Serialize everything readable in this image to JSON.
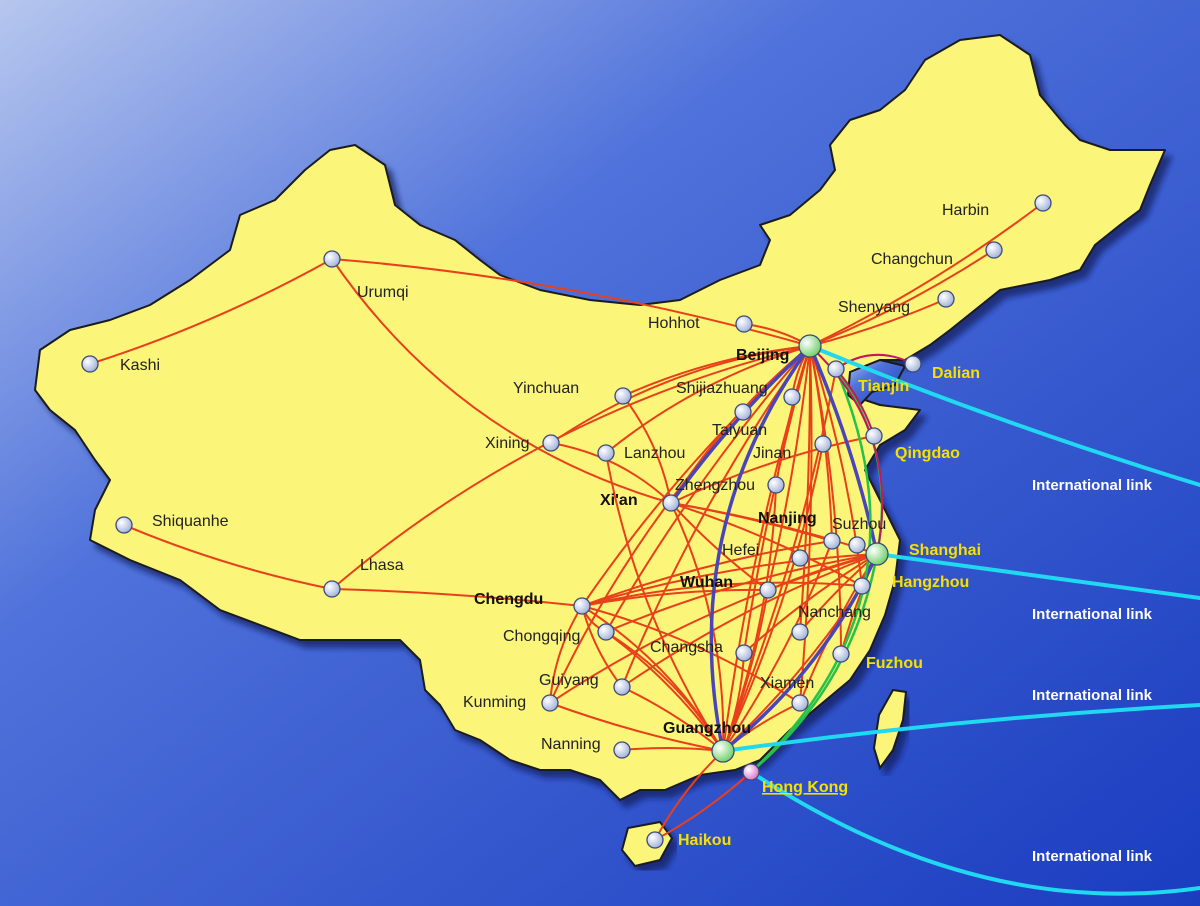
{
  "colors": {
    "land": "#fbf57a",
    "land_outline": "#1a1a1a",
    "sea_light": "#9fb3e6",
    "sea_dark": "#1d3ec2",
    "domestic_route": "#e8401a",
    "trunk_route": "#4a46b8",
    "coastal_route": "#25c14a",
    "bohai_route": "#c2185b",
    "international_route": "#20d8f0",
    "city_node": "#c8d4f0",
    "hub_node": "#9be08a",
    "hk_node": "#f08ad8",
    "coastal_label": "#f6e000"
  },
  "cities": [
    {
      "id": "harbin",
      "name": "Harbin",
      "kind": "normal"
    },
    {
      "id": "changchun",
      "name": "Changchun",
      "kind": "normal"
    },
    {
      "id": "shenyang",
      "name": "Shenyang",
      "kind": "normal"
    },
    {
      "id": "dalian",
      "name": "Dalian",
      "kind": "coastal"
    },
    {
      "id": "hohhot",
      "name": "Hohhot",
      "kind": "normal"
    },
    {
      "id": "beijing",
      "name": "Beijing",
      "kind": "hub"
    },
    {
      "id": "tianjin",
      "name": "Tianjin",
      "kind": "coastal"
    },
    {
      "id": "yinchuan",
      "name": "Yinchuan",
      "kind": "normal"
    },
    {
      "id": "shijiazhuang",
      "name": "Shijiazhuang",
      "kind": "normal"
    },
    {
      "id": "taiyuan",
      "name": "Taiyuan",
      "kind": "normal"
    },
    {
      "id": "qingdao",
      "name": "Qingdao",
      "kind": "coastal"
    },
    {
      "id": "xining",
      "name": "Xining",
      "kind": "normal"
    },
    {
      "id": "lanzhou",
      "name": "Lanzhou",
      "kind": "normal"
    },
    {
      "id": "jinan",
      "name": "Jinan",
      "kind": "normal"
    },
    {
      "id": "xian",
      "name": "Xi'an",
      "kind": "major"
    },
    {
      "id": "zhengzhou",
      "name": "Zhengzhou",
      "kind": "normal"
    },
    {
      "id": "nanjing",
      "name": "Nanjing",
      "kind": "major"
    },
    {
      "id": "suzhou",
      "name": "Suzhou",
      "kind": "normal"
    },
    {
      "id": "shanghai",
      "name": "Shanghai",
      "kind": "hub_coastal"
    },
    {
      "id": "hefei",
      "name": "Hefei",
      "kind": "normal"
    },
    {
      "id": "hangzhou",
      "name": "Hangzhou",
      "kind": "coastal"
    },
    {
      "id": "wuhan",
      "name": "Wuhan",
      "kind": "major"
    },
    {
      "id": "chengdu",
      "name": "Chengdu",
      "kind": "major"
    },
    {
      "id": "chongqing",
      "name": "Chongqing",
      "kind": "normal"
    },
    {
      "id": "nanchang",
      "name": "Nanchang",
      "kind": "normal"
    },
    {
      "id": "changsha",
      "name": "Changsha",
      "kind": "normal"
    },
    {
      "id": "fuzhou",
      "name": "Fuzhou",
      "kind": "coastal"
    },
    {
      "id": "guiyang",
      "name": "Guiyang",
      "kind": "normal"
    },
    {
      "id": "xiamen",
      "name": "Xiamen",
      "kind": "normal"
    },
    {
      "id": "kunming",
      "name": "Kunming",
      "kind": "normal"
    },
    {
      "id": "guangzhou",
      "name": "Guangzhou",
      "kind": "hub"
    },
    {
      "id": "nanning",
      "name": "Nanning",
      "kind": "normal"
    },
    {
      "id": "hongkong",
      "name": "Hong Kong",
      "kind": "hk"
    },
    {
      "id": "haikou",
      "name": "Haikou",
      "kind": "coastal"
    },
    {
      "id": "kashi",
      "name": "Kashi",
      "kind": "normal"
    },
    {
      "id": "urumqi",
      "name": "Urumqi",
      "kind": "normal"
    },
    {
      "id": "shiquanhe",
      "name": "Shiquanhe",
      "kind": "normal"
    },
    {
      "id": "lhasa",
      "name": "Lhasa",
      "kind": "normal"
    }
  ],
  "international_links": [
    {
      "label": "International link"
    },
    {
      "label": "International link"
    },
    {
      "label": "International link"
    },
    {
      "label": "International link"
    }
  ]
}
